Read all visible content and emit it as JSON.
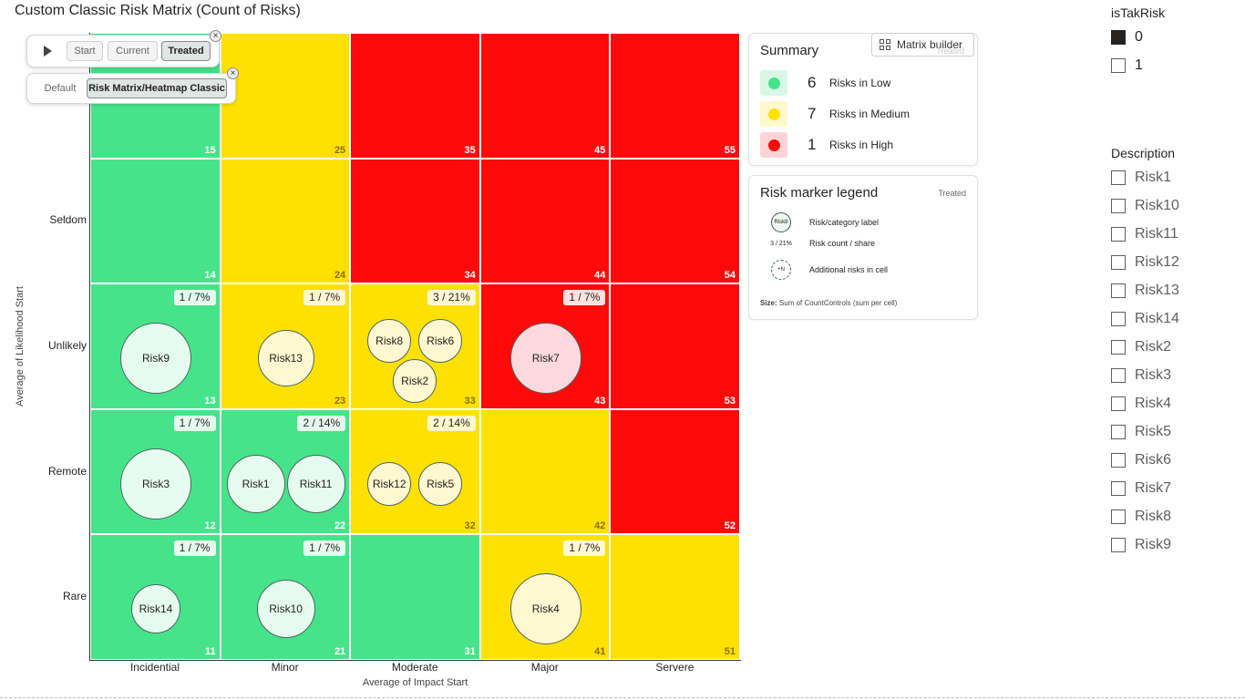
{
  "title": "Custom Classic Risk Matrix (Count of Risks)",
  "controls": {
    "playback": {
      "start_label": "Start",
      "current_label": "Current",
      "treated_label": "Treated",
      "active": "Treated"
    },
    "layout": {
      "default_label": "Default",
      "classic_label": "Risk Matrix/Heatmap Classic",
      "active": "Risk Matrix/Heatmap Classic"
    },
    "matrix_builder_label": "Matrix builder",
    "matrix_builder_hidden_text": "Treated"
  },
  "matrix": {
    "x_axis_title": "Average of Impact Start",
    "y_axis_title": "Average of Likelihood Start",
    "impact_labels": [
      "Incidential",
      "Minor",
      "Moderate",
      "Major",
      "Servere"
    ],
    "likelihood_labels": [
      "",
      "Seldom",
      "Unlikely",
      "Remote",
      "Rare"
    ],
    "level_colors": {
      "green": "#45e48a",
      "yellow": "#ffe100",
      "red": "#ff0a0a"
    },
    "cells": [
      {
        "id": "15",
        "color": "green",
        "badge": "",
        "risks": []
      },
      {
        "id": "25",
        "color": "yellow",
        "badge": "",
        "risks": []
      },
      {
        "id": "35",
        "color": "red",
        "badge": "",
        "risks": []
      },
      {
        "id": "45",
        "color": "red",
        "badge": "",
        "risks": []
      },
      {
        "id": "55",
        "color": "red",
        "badge": "",
        "risks": []
      },
      {
        "id": "14",
        "color": "green",
        "badge": "",
        "risks": []
      },
      {
        "id": "24",
        "color": "yellow",
        "badge": "",
        "risks": []
      },
      {
        "id": "34",
        "color": "red",
        "badge": "",
        "risks": []
      },
      {
        "id": "44",
        "color": "red",
        "badge": "",
        "risks": []
      },
      {
        "id": "54",
        "color": "red",
        "badge": "",
        "risks": []
      },
      {
        "id": "13",
        "color": "green",
        "badge": "1 / 7%",
        "risks": [
          "Risk9"
        ]
      },
      {
        "id": "23",
        "color": "yellow",
        "badge": "1 / 7%",
        "risks": [
          "Risk13"
        ]
      },
      {
        "id": "33",
        "color": "yellow",
        "badge": "3 / 21%",
        "risks": [
          "Risk8",
          "Risk6",
          "Risk2"
        ]
      },
      {
        "id": "43",
        "color": "red",
        "badge": "1 / 7%",
        "risks": [
          "Risk7"
        ]
      },
      {
        "id": "53",
        "color": "red",
        "badge": "",
        "risks": []
      },
      {
        "id": "12",
        "color": "green",
        "badge": "1 / 7%",
        "risks": [
          "Risk3"
        ]
      },
      {
        "id": "22",
        "color": "green",
        "badge": "2 / 14%",
        "risks": [
          "Risk1",
          "Risk11"
        ]
      },
      {
        "id": "32",
        "color": "yellow",
        "badge": "2 / 14%",
        "risks": [
          "Risk12",
          "Risk5"
        ]
      },
      {
        "id": "42",
        "color": "yellow",
        "badge": "",
        "risks": []
      },
      {
        "id": "52",
        "color": "red",
        "badge": "",
        "risks": []
      },
      {
        "id": "11",
        "color": "green",
        "badge": "1 / 7%",
        "risks": [
          "Risk14"
        ]
      },
      {
        "id": "21",
        "color": "green",
        "badge": "1 / 7%",
        "risks": [
          "Risk10"
        ]
      },
      {
        "id": "31",
        "color": "green",
        "badge": "",
        "risks": []
      },
      {
        "id": "41",
        "color": "yellow",
        "badge": "1 / 7%",
        "risks": [
          "Risk4"
        ]
      },
      {
        "id": "51",
        "color": "yellow",
        "badge": "",
        "risks": []
      }
    ]
  },
  "summary": {
    "title": "Summary",
    "rows": [
      {
        "count": "6",
        "label": "Risks in Low",
        "swatch": "#d9f7e6",
        "dot": "#45e48a"
      },
      {
        "count": "7",
        "label": "Risks in Medium",
        "swatch": "#fff8cc",
        "dot": "#ffe100"
      },
      {
        "count": "1",
        "label": "Risks in High",
        "swatch": "#ffd4d9",
        "dot": "#ff0a0a"
      }
    ]
  },
  "marker_legend": {
    "title": "Risk marker legend",
    "state": "Treated",
    "sample_bubble": "Risk8",
    "sample_count": "3 / 21%",
    "sample_more": "+N",
    "risk_label_text": "Risk/category label",
    "count_text": "Risk count / share",
    "additional_text": "Additional risks in cell",
    "size_label": "Size:",
    "size_text": "Sum of CountControls (sum per cell)"
  },
  "slicer_istakrisk": {
    "title": "isTakRisk",
    "items": [
      {
        "label": "0",
        "checked": true
      },
      {
        "label": "1",
        "checked": false
      }
    ]
  },
  "slicer_description": {
    "title": "Description",
    "items": [
      "Risk1",
      "Risk10",
      "Risk11",
      "Risk12",
      "Risk13",
      "Risk14",
      "Risk2",
      "Risk3",
      "Risk4",
      "Risk5",
      "Risk6",
      "Risk7",
      "Risk8",
      "Risk9"
    ]
  }
}
